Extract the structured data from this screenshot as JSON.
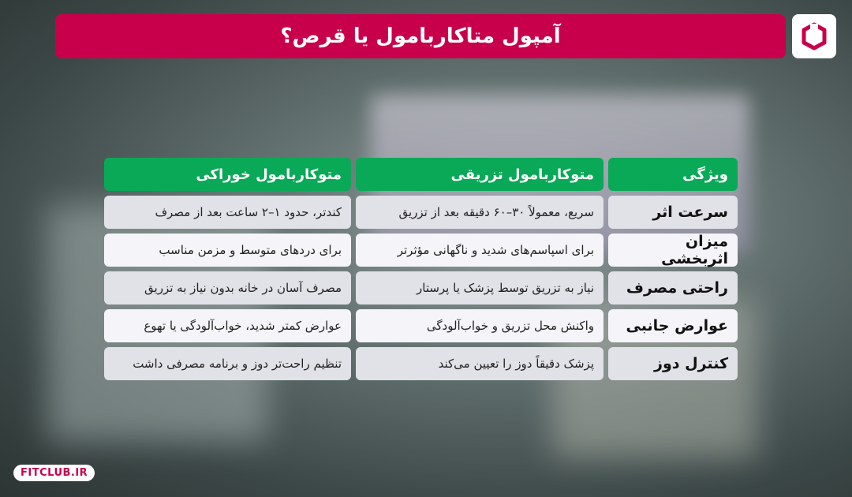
{
  "title": "آمپول متاکاربامول یا قرص؟",
  "brand": {
    "logo_text": "FITCLUB",
    "site": "FITCLUB.IR",
    "color": "#c8004b"
  },
  "table": {
    "headers": [
      "ویژگی",
      "متوکاربامول تزریقی",
      "متوکاربامول خوراکی"
    ],
    "rows": [
      [
        "سرعت اثر",
        "سریع، معمولاً ۳۰–۶۰ دقیقه بعد از تزریق",
        "کندتر، حدود ۱–۲ ساعت بعد از مصرف"
      ],
      [
        "میزان اثربخشی",
        "برای اسپاسم‌های شدید و ناگهانی مؤثرتر",
        "برای دردهای متوسط و مزمن مناسب"
      ],
      [
        "راحتی مصرف",
        "نیاز به تزریق توسط پزشک یا پرستار",
        "مصرف آسان در خانه بدون نیاز به تزریق"
      ],
      [
        "عوارض جانبی",
        "واکنش محل تزریق و خواب‌آلودگی",
        "عوارض کمتر شدید، خواب‌آلودگی یا تهوع"
      ],
      [
        "کنترل دوز",
        "پزشک دقیقاً دوز را تعیین می‌کند",
        "تنظیم راحت‌تر دوز و برنامه مصرفی داشت"
      ]
    ]
  },
  "colors": {
    "header": "#0aa957",
    "title_bar": "#c8004b"
  }
}
